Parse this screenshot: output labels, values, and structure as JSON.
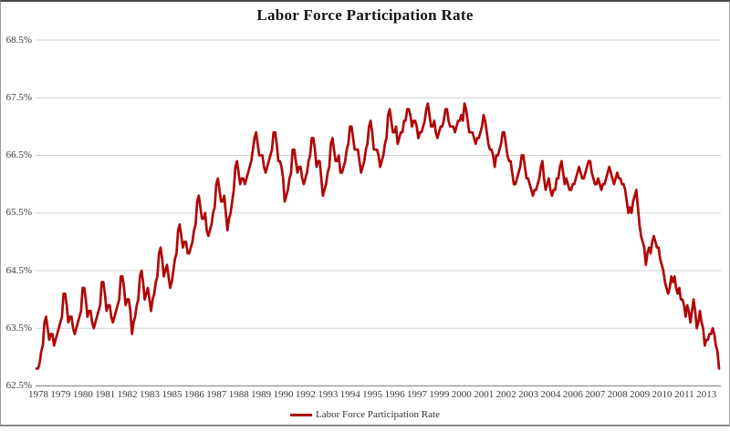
{
  "chart_data": {
    "type": "line",
    "title": "Labor Force Participation Rate",
    "xlabel": "",
    "ylabel": "",
    "ylim": [
      62.5,
      68.5
    ],
    "grid": "horizontal",
    "y_tick_labels": [
      "68.5%",
      "67.5%",
      "66.5%",
      "65.5%",
      "64.5%",
      "63.5%",
      "62.5%"
    ],
    "y_tick_values": [
      68.5,
      67.5,
      66.5,
      65.5,
      64.5,
      63.5,
      62.5
    ],
    "x_tick_labels": [
      "1978",
      "1979",
      "1980",
      "1981",
      "1982",
      "1983",
      "1985",
      "1986",
      "1987",
      "1988",
      "1989",
      "1990",
      "1992",
      "1993",
      "1994",
      "1995",
      "1996",
      "1997",
      "1999",
      "2000",
      "2001",
      "2002",
      "2003",
      "2004",
      "2006",
      "2007",
      "2008",
      "2009",
      "2010",
      "2011",
      "2013"
    ],
    "x_tick_interval_months": 14,
    "frequency": "monthly",
    "start_period": "1978-01",
    "end_period": "2013-10",
    "legend": {
      "position": "bottom",
      "label": "Labor Force Participation Rate"
    },
    "colors": {
      "line": "#b00707",
      "grid": "#d2d2d2",
      "axis": "#9e9e9e",
      "tick_text": "#3b3b3b",
      "title_text": "#141414"
    },
    "series": [
      {
        "name": "Labor Force Participation Rate",
        "values": [
          62.8,
          62.8,
          62.9,
          63.1,
          63.2,
          63.6,
          63.7,
          63.5,
          63.3,
          63.4,
          63.4,
          63.2,
          63.3,
          63.4,
          63.5,
          63.6,
          63.7,
          64.1,
          64.1,
          63.9,
          63.6,
          63.7,
          63.7,
          63.5,
          63.4,
          63.5,
          63.6,
          63.7,
          63.8,
          64.2,
          64.2,
          64.0,
          63.7,
          63.8,
          63.8,
          63.6,
          63.5,
          63.6,
          63.7,
          63.8,
          63.9,
          64.3,
          64.3,
          64.1,
          63.8,
          63.9,
          63.9,
          63.7,
          63.6,
          63.7,
          63.8,
          63.9,
          64.0,
          64.4,
          64.4,
          64.2,
          63.9,
          64.0,
          64.0,
          63.8,
          63.4,
          63.6,
          63.7,
          63.9,
          64.0,
          64.4,
          64.5,
          64.3,
          64.0,
          64.1,
          64.2,
          64.0,
          63.8,
          64.0,
          64.1,
          64.3,
          64.4,
          64.8,
          64.9,
          64.7,
          64.4,
          64.5,
          64.6,
          64.4,
          64.2,
          64.3,
          64.5,
          64.7,
          64.8,
          65.2,
          65.3,
          65.1,
          64.9,
          65.0,
          65.0,
          64.8,
          64.8,
          64.9,
          65.0,
          65.2,
          65.3,
          65.7,
          65.8,
          65.6,
          65.4,
          65.4,
          65.5,
          65.2,
          65.1,
          65.2,
          65.3,
          65.5,
          65.6,
          66.0,
          66.1,
          65.9,
          65.7,
          65.7,
          65.8,
          65.5,
          65.2,
          65.4,
          65.5,
          65.7,
          65.9,
          66.3,
          66.4,
          66.2,
          66.0,
          66.1,
          66.1,
          66.0,
          66.1,
          66.2,
          66.3,
          66.4,
          66.6,
          66.8,
          66.9,
          66.7,
          66.5,
          66.5,
          66.5,
          66.3,
          66.2,
          66.3,
          66.4,
          66.5,
          66.6,
          66.9,
          66.9,
          66.7,
          66.4,
          66.4,
          66.3,
          66.1,
          65.7,
          65.8,
          65.9,
          66.1,
          66.2,
          66.6,
          66.6,
          66.4,
          66.2,
          66.3,
          66.3,
          66.1,
          66.0,
          66.1,
          66.2,
          66.4,
          66.5,
          66.8,
          66.8,
          66.6,
          66.3,
          66.4,
          66.4,
          66.1,
          65.8,
          65.9,
          66.0,
          66.2,
          66.3,
          66.7,
          66.8,
          66.6,
          66.4,
          66.4,
          66.5,
          66.2,
          66.2,
          66.3,
          66.4,
          66.6,
          66.7,
          67.0,
          67.0,
          66.8,
          66.6,
          66.6,
          66.6,
          66.4,
          66.2,
          66.3,
          66.4,
          66.6,
          66.7,
          67.0,
          67.1,
          66.9,
          66.6,
          66.6,
          66.6,
          66.5,
          66.3,
          66.4,
          66.5,
          66.7,
          66.8,
          67.2,
          67.3,
          67.1,
          66.9,
          66.9,
          67.0,
          66.7,
          66.8,
          66.9,
          66.9,
          67.1,
          67.1,
          67.3,
          67.3,
          67.2,
          67.0,
          67.1,
          67.1,
          67.0,
          66.8,
          66.9,
          66.9,
          67.0,
          67.1,
          67.3,
          67.4,
          67.2,
          67.0,
          67.0,
          67.1,
          66.9,
          66.8,
          66.9,
          67.0,
          67.0,
          67.1,
          67.3,
          67.3,
          67.1,
          67.0,
          67.0,
          67.0,
          66.9,
          67.0,
          67.1,
          67.1,
          67.2,
          67.1,
          67.4,
          67.3,
          67.1,
          66.9,
          66.9,
          66.9,
          66.8,
          66.7,
          66.8,
          66.8,
          66.9,
          67.0,
          67.2,
          67.1,
          66.9,
          66.7,
          66.6,
          66.6,
          66.5,
          66.3,
          66.5,
          66.5,
          66.6,
          66.7,
          66.9,
          66.9,
          66.7,
          66.5,
          66.4,
          66.4,
          66.2,
          66.0,
          66.0,
          66.1,
          66.2,
          66.3,
          66.5,
          66.5,
          66.3,
          66.1,
          66.1,
          66.0,
          65.9,
          65.8,
          65.9,
          65.9,
          66.0,
          66.1,
          66.3,
          66.4,
          66.1,
          65.9,
          66.0,
          66.1,
          65.9,
          65.8,
          65.9,
          65.9,
          66.1,
          66.1,
          66.3,
          66.4,
          66.2,
          66.0,
          66.1,
          66.0,
          65.9,
          65.9,
          66.0,
          66.0,
          66.1,
          66.2,
          66.3,
          66.2,
          66.1,
          66.1,
          66.2,
          66.3,
          66.4,
          66.4,
          66.2,
          66.1,
          66.0,
          66.0,
          66.1,
          66.0,
          65.9,
          66.0,
          66.0,
          66.1,
          66.2,
          66.3,
          66.2,
          66.1,
          66.0,
          66.1,
          66.2,
          66.1,
          66.1,
          66.0,
          66.0,
          65.9,
          65.7,
          65.5,
          65.6,
          65.5,
          65.7,
          65.8,
          65.9,
          65.6,
          65.3,
          65.1,
          65.0,
          64.9,
          64.6,
          64.8,
          64.9,
          64.8,
          65.0,
          65.1,
          65.0,
          64.9,
          64.9,
          64.7,
          64.6,
          64.5,
          64.3,
          64.2,
          64.1,
          64.2,
          64.4,
          64.3,
          64.4,
          64.2,
          64.1,
          64.2,
          64.0,
          64.0,
          63.9,
          63.7,
          63.9,
          63.8,
          63.6,
          63.8,
          64.0,
          63.8,
          63.5,
          63.6,
          63.8,
          63.6,
          63.5,
          63.2,
          63.3,
          63.3,
          63.4,
          63.4,
          63.5,
          63.4,
          63.2,
          63.1,
          62.8
        ]
      }
    ]
  }
}
